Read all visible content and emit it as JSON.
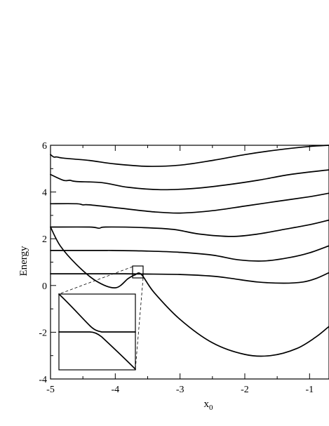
{
  "chart_data": {
    "type": "line",
    "title": "",
    "xlabel": "x",
    "xlabel_subscript": "0",
    "ylabel": "Energy",
    "xlim": [
      -5,
      -0.7
    ],
    "ylim": [
      -4,
      6
    ],
    "x_ticks": [
      -5,
      -4,
      -3,
      -2,
      -1
    ],
    "x_tick_labels": [
      "-5",
      "-4",
      "-3",
      "-2",
      "-1"
    ],
    "y_ticks": [
      -4,
      -2,
      0,
      2,
      4,
      6
    ],
    "y_tick_labels": [
      "-4",
      "-2",
      "0",
      "2",
      "4",
      "6"
    ],
    "grid": false,
    "legend": "none",
    "series": [
      {
        "x": [
          -5,
          -4.85,
          -4.6,
          -4.3,
          -4.0,
          -3.8,
          -3.7,
          -3.6,
          -3.4,
          -3.0,
          -2.5,
          -2.0,
          -1.6,
          -1.2,
          -0.9,
          -0.7
        ],
        "values": [
          2.5,
          1.7,
          0.9,
          0.2,
          -0.1,
          0.3,
          0.45,
          0.48,
          -0.3,
          -1.45,
          -2.45,
          -2.95,
          -3.0,
          -2.7,
          -2.2,
          -1.75
        ]
      },
      {
        "x": [
          -5,
          -4.0,
          -3.85,
          -3.5,
          -3.0,
          -2.5,
          -2.2,
          -1.8,
          -1.4,
          -1.1,
          -0.9,
          -0.7
        ],
        "values": [
          0.5,
          0.5,
          0.5,
          0.49,
          0.47,
          0.4,
          0.3,
          0.15,
          0.1,
          0.15,
          0.3,
          0.55
        ]
      },
      {
        "x": [
          -5,
          -4.3,
          -4.15,
          -4.05,
          -3.6,
          -3.0,
          -2.5,
          -2.1,
          -1.7,
          -1.3,
          -1.0,
          -0.7
        ],
        "values": [
          1.5,
          1.5,
          1.5,
          1.5,
          1.48,
          1.42,
          1.3,
          1.1,
          1.05,
          1.2,
          1.4,
          1.7
        ]
      },
      {
        "x": [
          -5,
          -4.4,
          -4.25,
          -4.15,
          -3.6,
          -3.1,
          -2.7,
          -2.2,
          -1.8,
          -1.4,
          -1.0,
          -0.7
        ],
        "values": [
          2.5,
          2.5,
          2.45,
          2.5,
          2.48,
          2.4,
          2.2,
          2.1,
          2.2,
          2.4,
          2.6,
          2.8
        ]
      },
      {
        "x": [
          -5,
          -4.6,
          -4.5,
          -4.4,
          -3.9,
          -3.4,
          -3.0,
          -2.5,
          -2.0,
          -1.5,
          -1.0,
          -0.7
        ],
        "values": [
          3.5,
          3.5,
          3.45,
          3.45,
          3.3,
          3.15,
          3.1,
          3.2,
          3.4,
          3.6,
          3.8,
          3.95
        ]
      },
      {
        "x": [
          -5,
          -4.8,
          -4.7,
          -4.6,
          -4.2,
          -3.8,
          -3.3,
          -2.8,
          -2.3,
          -1.8,
          -1.3,
          -0.7
        ],
        "values": [
          4.75,
          4.5,
          4.5,
          4.45,
          4.4,
          4.2,
          4.1,
          4.15,
          4.3,
          4.5,
          4.75,
          4.95
        ]
      },
      {
        "x": [
          -5,
          -4.95,
          -4.9,
          -4.8,
          -4.4,
          -4.0,
          -3.5,
          -3.0,
          -2.5,
          -2.0,
          -1.5,
          -1.0,
          -0.7
        ],
        "values": [
          5.6,
          5.5,
          5.5,
          5.45,
          5.35,
          5.2,
          5.1,
          5.15,
          5.35,
          5.6,
          5.8,
          5.95,
          6.0
        ]
      }
    ],
    "zoom_box": {
      "x": [
        -3.75,
        -3.6
      ],
      "y": [
        0.25,
        0.75
      ]
    }
  }
}
